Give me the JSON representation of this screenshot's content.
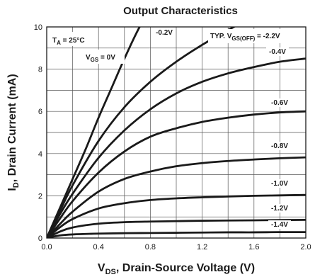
{
  "chart_data": {
    "type": "line",
    "title": "Output Characteristics",
    "xlabel_main": "V",
    "xlabel_sub": "DS",
    "xlabel_rest": ", Drain-Source Voltage (V)",
    "ylabel_main": "I",
    "ylabel_sub": "D",
    "ylabel_rest": ", Drain Current (mA)",
    "xlim": [
      0,
      2.0
    ],
    "ylim": [
      0,
      10
    ],
    "grid": true,
    "x_ticks": [
      "0.0",
      "0.4",
      "0.8",
      "1.2",
      "1.6",
      "2.0"
    ],
    "y_ticks": [
      "0",
      "2",
      "4",
      "6",
      "8",
      "10"
    ],
    "annotations": {
      "ta_main": "T",
      "ta_sub": "A",
      "ta_rest": " = 25°C",
      "vgs_main": "V",
      "vgs_sub": "GS",
      "vgs_rest": " = 0V",
      "typ_main": "TYP. V",
      "typ_sub": "GS(OFF)",
      "typ_rest": " = -2.2V"
    },
    "series": [
      {
        "name": "0V",
        "label": "",
        "x": [
          0,
          0.1,
          0.2,
          0.3,
          0.4,
          0.5,
          0.6,
          0.7,
          0.8
        ],
        "y": [
          0,
          1.4,
          2.8,
          4.2,
          5.7,
          7.1,
          8.5,
          9.8,
          10.9
        ]
      },
      {
        "name": "-0.2V",
        "label": "-0.2V",
        "x": [
          0,
          0.1,
          0.2,
          0.4,
          0.6,
          0.8,
          1.0,
          1.2,
          1.4,
          1.6
        ],
        "y": [
          0,
          1.25,
          2.5,
          4.6,
          6.2,
          7.4,
          8.35,
          9.15,
          9.85,
          10.5
        ]
      },
      {
        "name": "-0.4V",
        "label": "-0.4V",
        "x": [
          0,
          0.1,
          0.2,
          0.4,
          0.6,
          0.8,
          1.0,
          1.2,
          1.4,
          1.6,
          1.8,
          2.0
        ],
        "y": [
          0,
          1.1,
          2.1,
          3.8,
          5.1,
          6.1,
          6.85,
          7.4,
          7.8,
          8.1,
          8.35,
          8.5
        ]
      },
      {
        "name": "-0.6V",
        "label": "-0.6V",
        "x": [
          0,
          0.1,
          0.2,
          0.4,
          0.6,
          0.8,
          1.0,
          1.2,
          1.4,
          1.6,
          1.8,
          2.0
        ],
        "y": [
          0,
          0.9,
          1.75,
          3.1,
          4.1,
          4.8,
          5.2,
          5.5,
          5.7,
          5.85,
          5.95,
          6.0
        ]
      },
      {
        "name": "-0.8V",
        "label": "-0.8V",
        "x": [
          0,
          0.1,
          0.2,
          0.4,
          0.6,
          0.8,
          1.0,
          1.2,
          1.4,
          1.6,
          1.8,
          2.0
        ],
        "y": [
          0,
          0.65,
          1.25,
          2.2,
          2.8,
          3.15,
          3.4,
          3.55,
          3.65,
          3.72,
          3.78,
          3.82
        ]
      },
      {
        "name": "-1.0V",
        "label": "-1.0V",
        "x": [
          0,
          0.1,
          0.2,
          0.4,
          0.6,
          0.8,
          1.0,
          1.2,
          1.4,
          1.6,
          1.8,
          2.0
        ],
        "y": [
          0,
          0.5,
          0.9,
          1.4,
          1.65,
          1.8,
          1.88,
          1.93,
          1.97,
          2.0,
          2.02,
          2.04
        ]
      },
      {
        "name": "-1.2V",
        "label": "-1.2V",
        "x": [
          0,
          0.1,
          0.2,
          0.4,
          0.6,
          0.8,
          1.0,
          1.2,
          1.4,
          1.6,
          1.8,
          2.0
        ],
        "y": [
          0,
          0.3,
          0.5,
          0.68,
          0.75,
          0.78,
          0.8,
          0.82,
          0.83,
          0.84,
          0.85,
          0.86
        ]
      },
      {
        "name": "-1.4V",
        "label": "-1.4V",
        "x": [
          0,
          0.1,
          0.2,
          0.4,
          0.6,
          0.8,
          1.0,
          1.2,
          1.4,
          1.6,
          1.8,
          2.0
        ],
        "y": [
          0,
          0.12,
          0.17,
          0.21,
          0.23,
          0.24,
          0.25,
          0.26,
          0.27,
          0.27,
          0.28,
          0.28
        ]
      }
    ]
  }
}
